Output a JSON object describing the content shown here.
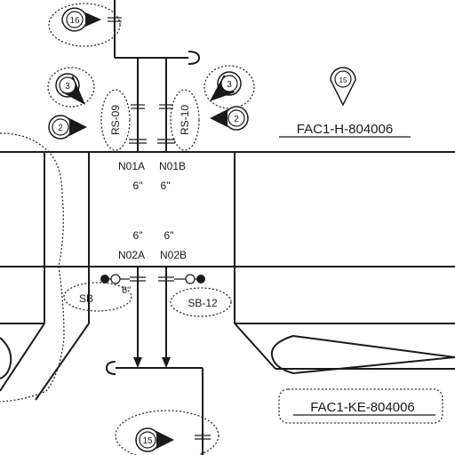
{
  "drawing_refs": {
    "top": "FAC1-H-804006",
    "bottom": "FAC1-KE-804006"
  },
  "tags": {
    "left": "RS-09",
    "right": "RS-10",
    "sb_left": "SB",
    "sb_right": "SB-12"
  },
  "nozzles": {
    "n01a": {
      "id": "N01A",
      "size": "6\""
    },
    "n01b": {
      "id": "N01B",
      "size": "6\""
    },
    "n02a": {
      "id": "N02A",
      "size": "6\""
    },
    "n02b": {
      "id": "N02B",
      "size": "6\""
    },
    "pipe_size_label": "6\""
  },
  "markers": {
    "m16_top": "16",
    "m3_left": "3",
    "m2_left": "2",
    "m2_right": "2",
    "m3_right": "3",
    "m_top_right": "15",
    "m15_bottom": "15"
  },
  "colors": {
    "line": "#1a1a1a",
    "background": "#ffffff"
  }
}
